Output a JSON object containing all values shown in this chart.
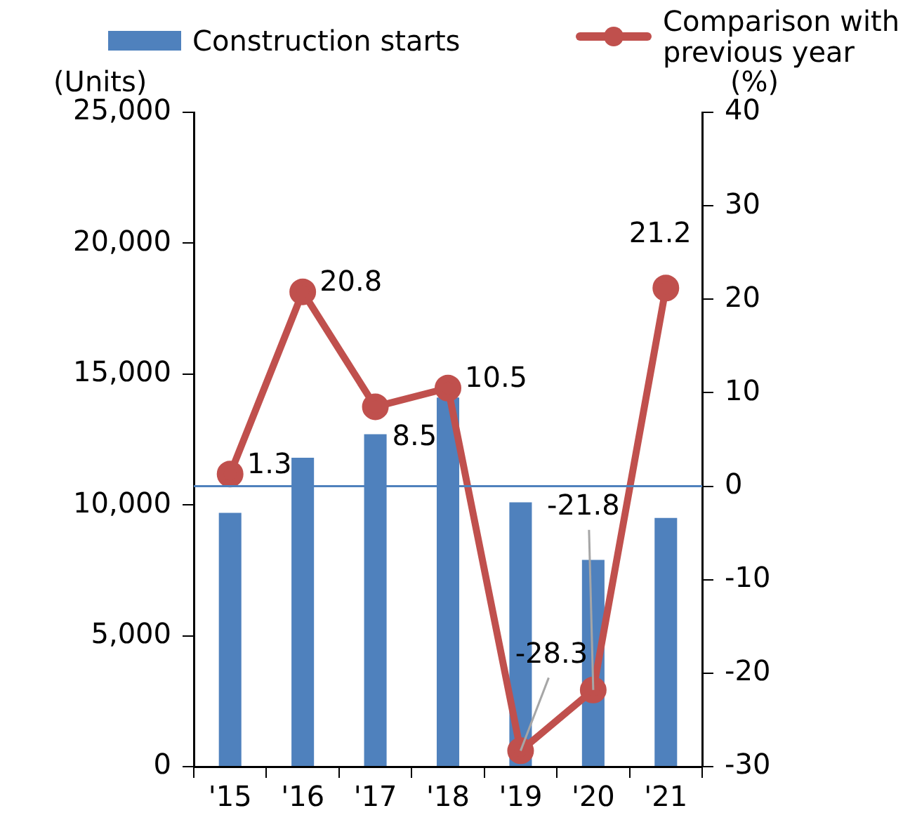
{
  "chart_data": {
    "type": "bar",
    "categories": [
      "'15",
      "'16",
      "'17",
      "'18",
      "'19",
      "'20",
      "'21"
    ],
    "series": [
      {
        "name": "Construction starts",
        "type": "bar",
        "color": "#4f81bd",
        "values": [
          9700,
          11800,
          12700,
          14100,
          10100,
          7900,
          9500
        ]
      },
      {
        "name": "Comparison with previous year",
        "type": "line",
        "axis": "y2",
        "color": "#c0504d",
        "marker": "circle",
        "values": [
          1.3,
          20.8,
          8.5,
          10.5,
          -28.3,
          -21.8,
          21.2
        ],
        "value_labels": [
          "1.3",
          "20.8",
          "8.5",
          "10.5",
          "-28.3",
          "-21.8",
          "21.2"
        ]
      }
    ],
    "ylabel": "(Units)",
    "y2label": "(%)",
    "ylim": [
      0,
      25000
    ],
    "yticks": [
      {
        "value": 0,
        "label": "0"
      },
      {
        "value": 5000,
        "label": "5,000"
      },
      {
        "value": 10000,
        "label": "10,000"
      },
      {
        "value": 15000,
        "label": "15,000"
      },
      {
        "value": 20000,
        "label": "20,000"
      },
      {
        "value": 25000,
        "label": "25,000"
      }
    ],
    "y2lim": [
      -30,
      40
    ],
    "y2ticks": [
      -30,
      -20,
      -10,
      0,
      10,
      20,
      30,
      40
    ],
    "ref_lines": [
      {
        "axis": "y2",
        "value": 0,
        "color": "#4f81bd"
      }
    ],
    "grid": false,
    "legend": "top"
  }
}
